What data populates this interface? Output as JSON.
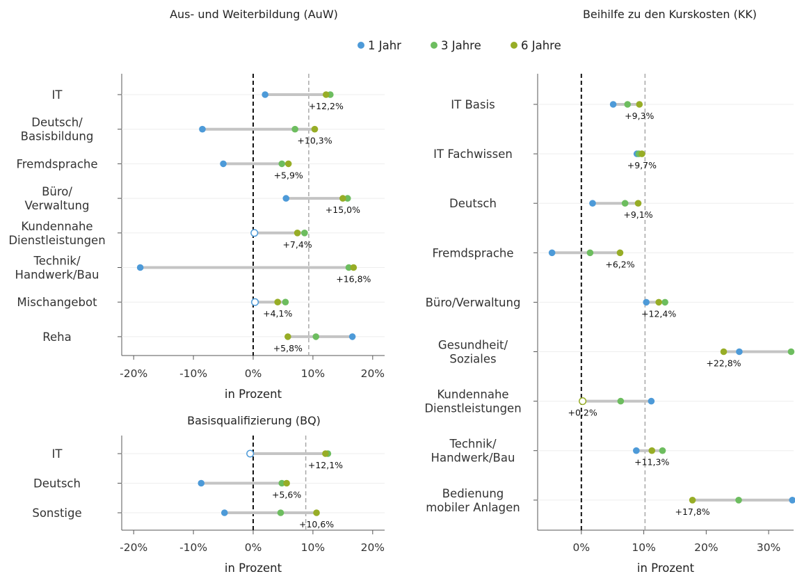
{
  "legend": [
    {
      "label": "1 Jahr",
      "color": "#4d9ad8"
    },
    {
      "label": "3 Jahre",
      "color": "#6dbd5f"
    },
    {
      "label": "6 Jahre",
      "color": "#97ad26"
    }
  ],
  "colors": {
    "range_line": "#c4c4c4",
    "zero_line": "#111111",
    "ref_line": "#a8a8a8",
    "grid": "#eeeeee"
  },
  "chart_data": [
    {
      "type": "dumbbell",
      "title": "Aus- und Weiterbildung (AuW)",
      "xlabel": "in Prozent",
      "xlim": [
        -22,
        22
      ],
      "xticks": [
        "-20%",
        "-10%",
        "0%",
        "10%",
        "20%"
      ],
      "xtick_values": [
        -20,
        -10,
        0,
        10,
        20
      ],
      "reference_line": 9.3,
      "series_names": [
        "1 Jahr",
        "3 Jahre",
        "6 Jahre"
      ],
      "categories": [
        {
          "name": [
            "IT"
          ],
          "y1": 2.0,
          "y3": 12.9,
          "y6": 12.2,
          "label": "+12,2%"
        },
        {
          "name": [
            "Deutsch/",
            "Basisbildung"
          ],
          "y1": -8.5,
          "y3": 7.0,
          "y6": 10.3,
          "label": "+10,3%"
        },
        {
          "name": [
            "Fremdsprache"
          ],
          "y1": -5.0,
          "y3": 4.8,
          "y6": 5.9,
          "label": "+5,9%"
        },
        {
          "name": [
            "Büro/",
            "Verwaltung"
          ],
          "y1": 5.5,
          "y3": 15.8,
          "y6": 15.0,
          "label": "+15,0%"
        },
        {
          "name": [
            "Kundennahe",
            "Dienstleistungen"
          ],
          "y1": 0.2,
          "y1_hollow": true,
          "y3": 8.6,
          "y6": 7.4,
          "label": "+7,4%"
        },
        {
          "name": [
            "Technik/",
            "Handwerk/Bau"
          ],
          "y1": -18.9,
          "y3": 16.0,
          "y6": 16.8,
          "label": "+16,8%"
        },
        {
          "name": [
            "Mischangebot"
          ],
          "y1": 0.3,
          "y1_hollow": true,
          "y3": 5.4,
          "y6": 4.1,
          "label": "+4,1%"
        },
        {
          "name": [
            "Reha"
          ],
          "y1": 16.6,
          "y3": 10.5,
          "y6": 5.8,
          "label": "+5,8%"
        }
      ]
    },
    {
      "type": "dumbbell",
      "title": "Basisqualifizierung (BQ)",
      "xlabel": "in Prozent",
      "xlim": [
        -22,
        22
      ],
      "xticks": [
        "-20%",
        "-10%",
        "0%",
        "10%",
        "20%"
      ],
      "xtick_values": [
        -20,
        -10,
        0,
        10,
        20
      ],
      "reference_line": 8.8,
      "series_names": [
        "1 Jahr",
        "3 Jahre",
        "6 Jahre"
      ],
      "categories": [
        {
          "name": [
            "IT"
          ],
          "y1": -0.5,
          "y1_hollow": true,
          "y3": 12.5,
          "y6": 12.1,
          "label": "+12,1%"
        },
        {
          "name": [
            "Deutsch"
          ],
          "y1": -8.7,
          "y3": 4.8,
          "y6": 5.6,
          "label": "+5,6%"
        },
        {
          "name": [
            "Sonstige"
          ],
          "y1": -4.8,
          "y3": 4.6,
          "y6": 10.6,
          "label": "+10,6%"
        }
      ]
    },
    {
      "type": "dumbbell",
      "title": "Beihilfe zu den Kurskosten (KK)",
      "xlabel": "in Prozent",
      "xlim": [
        -7,
        34
      ],
      "xticks": [
        "0%",
        "10%",
        "20%",
        "30%"
      ],
      "xtick_values": [
        0,
        10,
        20,
        30
      ],
      "reference_line": 10.2,
      "series_names": [
        "1 Jahr",
        "3 Jahre",
        "6 Jahre"
      ],
      "categories": [
        {
          "name": [
            "IT Basis"
          ],
          "y1": 5.1,
          "y3": 7.4,
          "y6": 9.3,
          "label": "+9,3%"
        },
        {
          "name": [
            "IT Fachwissen"
          ],
          "y1": 8.9,
          "y3": 9.2,
          "y6": 9.7,
          "label": "+9,7%"
        },
        {
          "name": [
            "Deutsch"
          ],
          "y1": 1.8,
          "y3": 7.0,
          "y6": 9.1,
          "label": "+9,1%"
        },
        {
          "name": [
            "Fremdsprache"
          ],
          "y1": -4.7,
          "y3": 1.4,
          "y6": 6.2,
          "label": "+6,2%"
        },
        {
          "name": [
            "Büro/Verwaltung"
          ],
          "y1": 10.4,
          "y3": 13.4,
          "y6": 12.4,
          "label": "+12,4%"
        },
        {
          "name": [
            "Gesundheit/",
            "Soziales"
          ],
          "y1": 25.3,
          "y3": 33.6,
          "y6": 22.8,
          "label": "+22,8%"
        },
        {
          "name": [
            "Kundennahe",
            "Dienstleistungen"
          ],
          "y1": 11.2,
          "y3": 6.3,
          "y6": 0.2,
          "y6_hollow": true,
          "label": "+0,2%"
        },
        {
          "name": [
            "Technik/",
            "Handwerk/Bau"
          ],
          "y1": 8.8,
          "y3": 13.0,
          "y6": 11.3,
          "label": "+11,3%"
        },
        {
          "name": [
            "Bedienung",
            "mobiler Anlagen"
          ],
          "y1": 33.8,
          "y3": 25.2,
          "y6": 17.8,
          "label": "+17,8%"
        }
      ]
    }
  ]
}
